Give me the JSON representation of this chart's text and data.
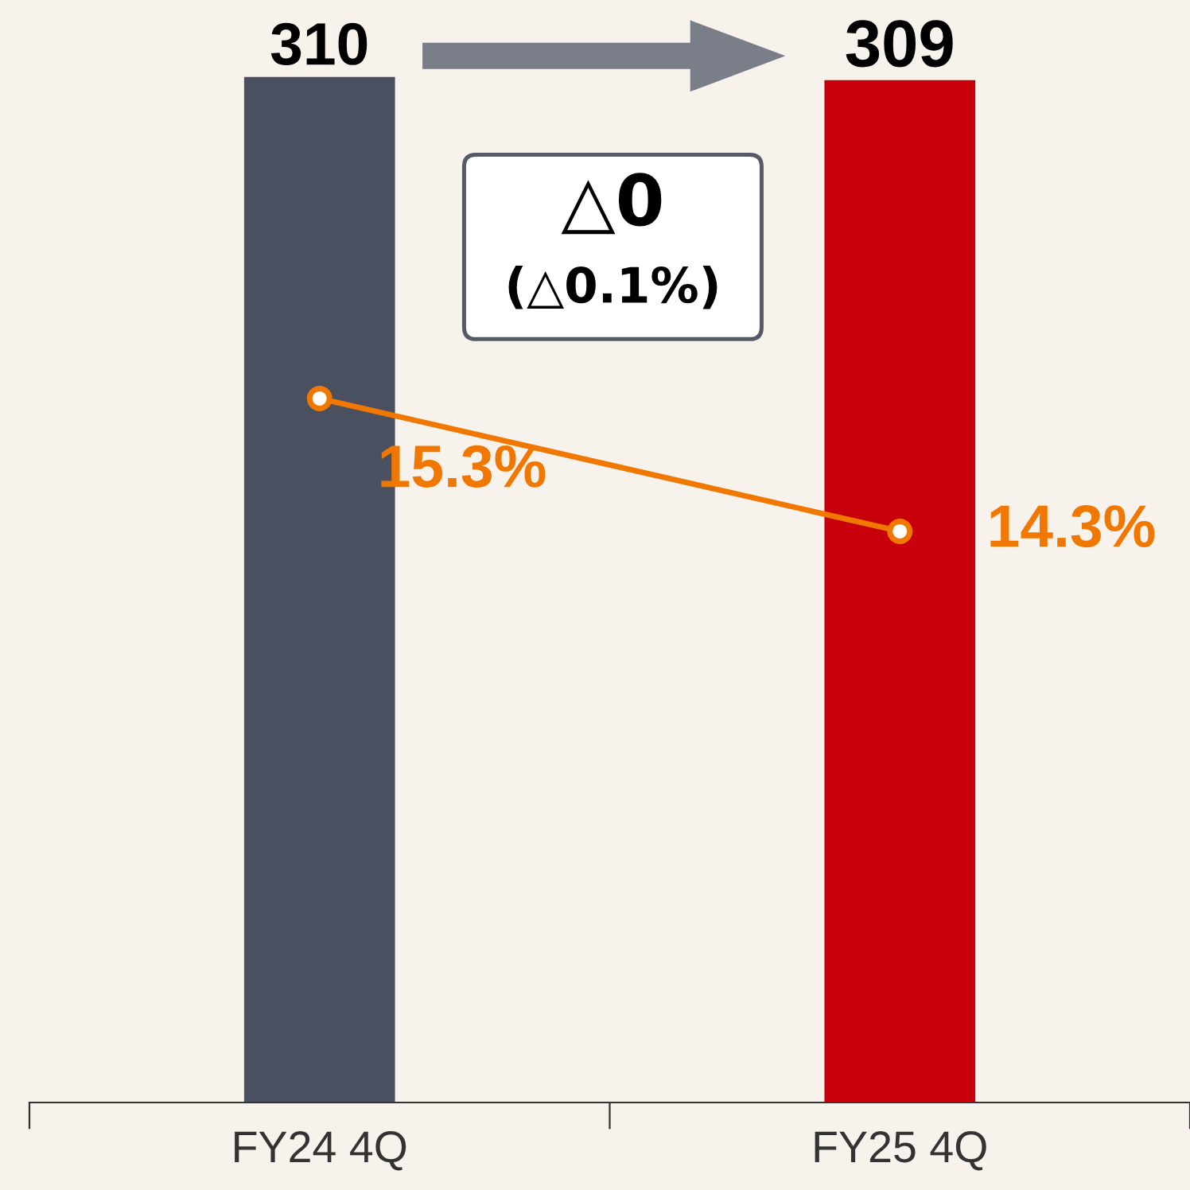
{
  "chart_data": {
    "type": "bar",
    "categories": [
      "FY24 4Q",
      "FY25 4Q"
    ],
    "series": [
      {
        "colors": [
          "#4a5060",
          "#c8000b"
        ],
        "values": [
          310,
          309
        ],
        "data_labels": true
      },
      {
        "type": "line",
        "axis": "y2",
        "color": "#f07800",
        "values": [
          15.3,
          14.3
        ],
        "value_labels": [
          "15.3%",
          "14.3%"
        ],
        "marker": "circle"
      }
    ],
    "y2lim": [
      10,
      18.3
    ],
    "tick_labels": "x",
    "grid": false,
    "legend": false,
    "annotations": [
      "△0",
      "(△0.1%)"
    ]
  }
}
